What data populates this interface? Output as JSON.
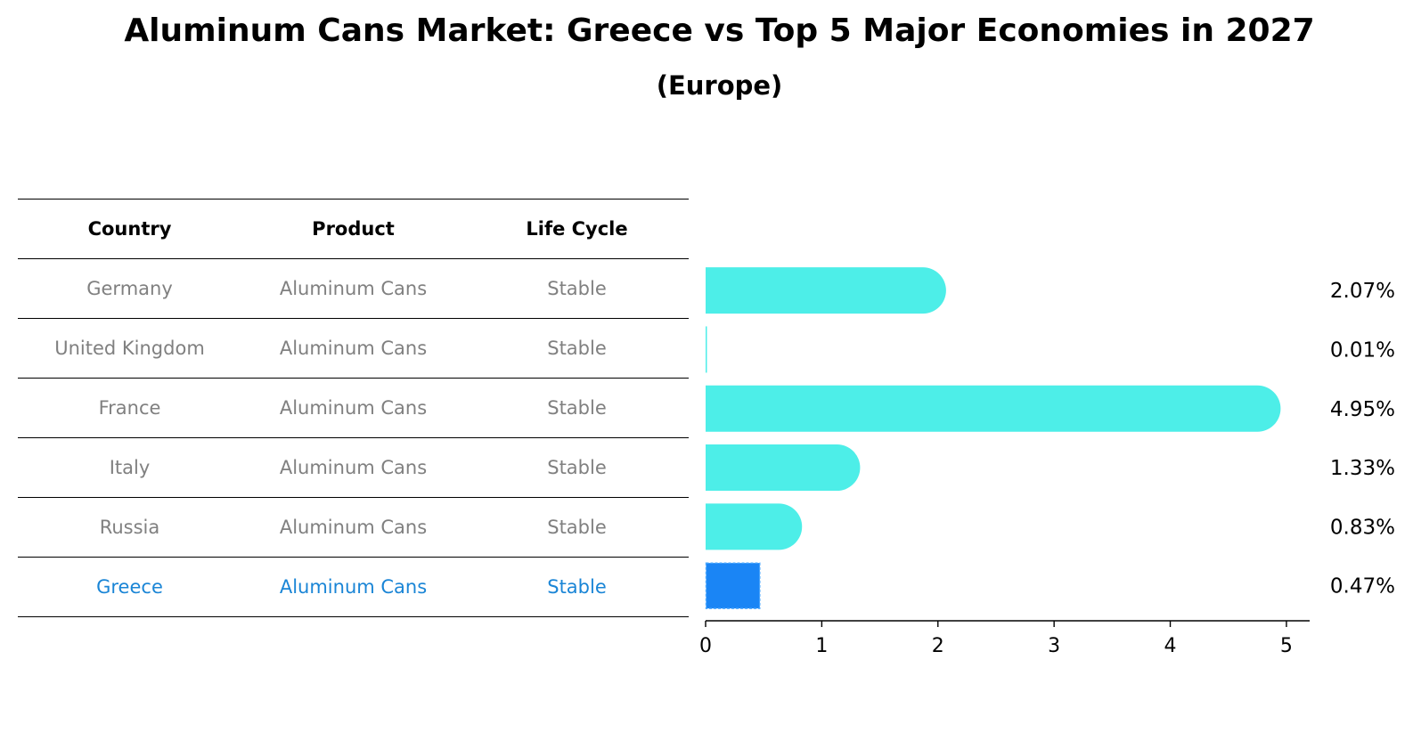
{
  "title": "Aluminum Cans Market: Greece vs Top 5 Major Economies in 2027",
  "subtitle": "(Europe)",
  "table": {
    "headers": [
      "Country",
      "Product",
      "Life Cycle"
    ],
    "rows": [
      {
        "country": "Germany",
        "product": "Aluminum Cans",
        "life_cycle": "Stable"
      },
      {
        "country": "United Kingdom",
        "product": "Aluminum Cans",
        "life_cycle": "Stable"
      },
      {
        "country": "France",
        "product": "Aluminum Cans",
        "life_cycle": "Stable"
      },
      {
        "country": "Italy",
        "product": "Aluminum Cans",
        "life_cycle": "Stable"
      },
      {
        "country": "Russia",
        "product": "Aluminum Cans",
        "life_cycle": "Stable"
      },
      {
        "country": "Greece",
        "product": "Aluminum Cans",
        "life_cycle": "Stable"
      }
    ]
  },
  "colors": {
    "bar": "#4deee8",
    "highlight_bar": "#1a85f5",
    "highlight_text": "#1a85d6",
    "muted_text": "#808080"
  },
  "chart_data": {
    "type": "bar",
    "orientation": "horizontal",
    "title": "Aluminum Cans Market: Greece vs Top 5 Major Economies in 2027",
    "subtitle": "(Europe)",
    "categories": [
      "Germany",
      "United Kingdom",
      "France",
      "Italy",
      "Russia",
      "Greece"
    ],
    "values": [
      2.07,
      0.01,
      4.95,
      1.33,
      0.83,
      0.47
    ],
    "value_labels": [
      "2.07%",
      "0.01%",
      "4.95%",
      "1.33%",
      "0.83%",
      "0.47%"
    ],
    "highlight": "Greece",
    "xlim": [
      0,
      5.2
    ],
    "xticks": [
      0,
      1,
      2,
      3,
      4,
      5
    ],
    "xlabel": "",
    "ylabel": "",
    "grid": false
  }
}
